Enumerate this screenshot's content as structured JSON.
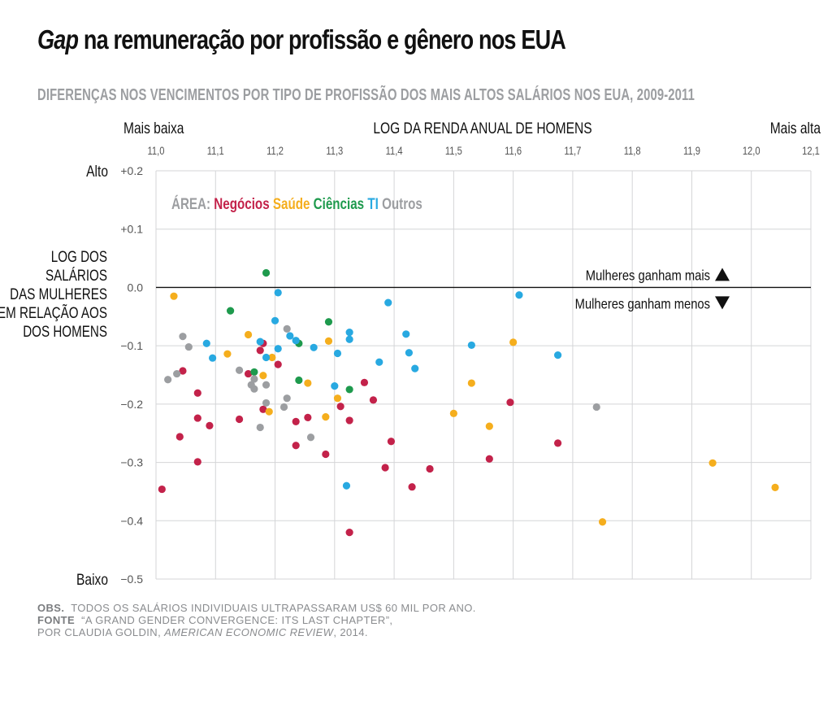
{
  "title_em": "Gap",
  "title_rest": " na remuneração por profissão e gênero nos EUA",
  "subtitle": "DIFERENÇAS NOS VENCIMENTOS POR TIPO DE PROFISSÃO DOS MAIS ALTOS SALÁRIOS NOS EUA, 2009-2011",
  "notes": {
    "obs_label": "OBS.",
    "obs_text": "TODOS OS SALÁRIOS INDIVIDUAIS ULTRAPASSARAM US$ 60 MIL POR ANO.",
    "source_label": "FONTE",
    "source_text": "“A GRAND GENDER CONVERGENCE: ITS LAST CHAPTER”,",
    "source_line2_a": "POR CLAUDIA GOLDIN, ",
    "source_line2_journal": "AMERICAN ECONOMIC REVIEW",
    "source_line2_b": ", 2014."
  },
  "chart_data": {
    "type": "scatter",
    "title": "Gap na remuneração por profissão e gênero nos EUA",
    "xlabel": "LOG DA RENDA ANUAL DE HOMENS",
    "x_low_label": "Mais baixa",
    "x_high_label": "Mais alta",
    "ylabel_lines": [
      "LOG DOS",
      "SALÁRIOS",
      "DAS MULHERES",
      "EM RELAÇÃO AOS",
      "DOS HOMENS"
    ],
    "y_high_label": "Alto",
    "y_low_label": "Baixo",
    "xlim": [
      11.0,
      12.1
    ],
    "ylim": [
      -0.5,
      0.2
    ],
    "x_ticks": [
      11.0,
      11.1,
      11.2,
      11.3,
      11.4,
      11.5,
      11.6,
      11.7,
      11.8,
      11.9,
      12.0,
      12.1
    ],
    "x_tick_labels": [
      "11,0",
      "11,1",
      "11,2",
      "11,3",
      "11,4",
      "11,5",
      "11,6",
      "11,7",
      "11,8",
      "11,9",
      "12,0",
      "12,1"
    ],
    "y_ticks": [
      0.2,
      0.1,
      0.0,
      -0.1,
      -0.2,
      -0.3,
      -0.4,
      -0.5
    ],
    "y_tick_labels": [
      "+0.2",
      "+0.1",
      "0.0",
      "−0.1",
      "−0.2",
      "−0.3",
      "−0.4",
      "−0.5"
    ],
    "grid": true,
    "legend_prefix": "ÁREA:",
    "legend_position": "top-left",
    "annotation_up": "Mulheres ganham mais",
    "annotation_down": "Mulheres ganham menos",
    "series": [
      {
        "name": "Negócios",
        "color": "#c3224a",
        "points": [
          [
            11.01,
            -0.346
          ],
          [
            11.04,
            -0.256
          ],
          [
            11.045,
            -0.143
          ],
          [
            11.07,
            -0.181
          ],
          [
            11.07,
            -0.224
          ],
          [
            11.07,
            -0.299
          ],
          [
            11.09,
            -0.237
          ],
          [
            11.14,
            -0.226
          ],
          [
            11.155,
            -0.148
          ],
          [
            11.175,
            -0.108
          ],
          [
            11.18,
            -0.096
          ],
          [
            11.18,
            -0.209
          ],
          [
            11.205,
            -0.132
          ],
          [
            11.235,
            -0.23
          ],
          [
            11.235,
            -0.271
          ],
          [
            11.255,
            -0.223
          ],
          [
            11.285,
            -0.286
          ],
          [
            11.31,
            -0.204
          ],
          [
            11.325,
            -0.228
          ],
          [
            11.325,
            -0.42
          ],
          [
            11.35,
            -0.163
          ],
          [
            11.365,
            -0.193
          ],
          [
            11.385,
            -0.309
          ],
          [
            11.395,
            -0.264
          ],
          [
            11.43,
            -0.342
          ],
          [
            11.46,
            -0.311
          ],
          [
            11.56,
            -0.294
          ],
          [
            11.595,
            -0.197
          ],
          [
            11.675,
            -0.267
          ]
        ]
      },
      {
        "name": "Saúde",
        "color": "#f5ae1d",
        "points": [
          [
            11.03,
            -0.015
          ],
          [
            11.12,
            -0.114
          ],
          [
            11.155,
            -0.081
          ],
          [
            11.18,
            -0.151
          ],
          [
            11.19,
            -0.213
          ],
          [
            11.195,
            -0.12
          ],
          [
            11.255,
            -0.164
          ],
          [
            11.285,
            -0.222
          ],
          [
            11.29,
            -0.092
          ],
          [
            11.305,
            -0.19
          ],
          [
            11.5,
            -0.216
          ],
          [
            11.53,
            -0.164
          ],
          [
            11.56,
            -0.238
          ],
          [
            11.6,
            -0.094
          ],
          [
            11.75,
            -0.402
          ],
          [
            11.935,
            -0.301
          ],
          [
            12.04,
            -0.343
          ]
        ]
      },
      {
        "name": "Ciências",
        "color": "#1e9a4d",
        "points": [
          [
            11.125,
            -0.04
          ],
          [
            11.165,
            -0.145
          ],
          [
            11.185,
            0.025
          ],
          [
            11.24,
            -0.096
          ],
          [
            11.24,
            -0.159
          ],
          [
            11.29,
            -0.059
          ],
          [
            11.325,
            -0.175
          ]
        ]
      },
      {
        "name": "TI",
        "color": "#28a9e1",
        "points": [
          [
            11.085,
            -0.096
          ],
          [
            11.095,
            -0.121
          ],
          [
            11.175,
            -0.093
          ],
          [
            11.185,
            -0.12
          ],
          [
            11.2,
            -0.057
          ],
          [
            11.205,
            -0.105
          ],
          [
            11.205,
            -0.009
          ],
          [
            11.225,
            -0.083
          ],
          [
            11.235,
            -0.091
          ],
          [
            11.265,
            -0.103
          ],
          [
            11.3,
            -0.169
          ],
          [
            11.305,
            -0.113
          ],
          [
            11.32,
            -0.34
          ],
          [
            11.325,
            -0.077
          ],
          [
            11.325,
            -0.089
          ],
          [
            11.375,
            -0.128
          ],
          [
            11.39,
            -0.026
          ],
          [
            11.42,
            -0.08
          ],
          [
            11.425,
            -0.112
          ],
          [
            11.435,
            -0.139
          ],
          [
            11.53,
            -0.099
          ],
          [
            11.61,
            -0.013
          ],
          [
            11.675,
            -0.116
          ]
        ]
      },
      {
        "name": "Outros",
        "color": "#9c9ea1",
        "points": [
          [
            11.02,
            -0.158
          ],
          [
            11.035,
            -0.148
          ],
          [
            11.045,
            -0.084
          ],
          [
            11.055,
            -0.102
          ],
          [
            11.14,
            -0.142
          ],
          [
            11.16,
            -0.167
          ],
          [
            11.165,
            -0.157
          ],
          [
            11.165,
            -0.174
          ],
          [
            11.175,
            -0.24
          ],
          [
            11.185,
            -0.167
          ],
          [
            11.185,
            -0.198
          ],
          [
            11.215,
            -0.205
          ],
          [
            11.22,
            -0.071
          ],
          [
            11.22,
            -0.19
          ],
          [
            11.26,
            -0.257
          ],
          [
            11.74,
            -0.205
          ]
        ]
      }
    ]
  }
}
